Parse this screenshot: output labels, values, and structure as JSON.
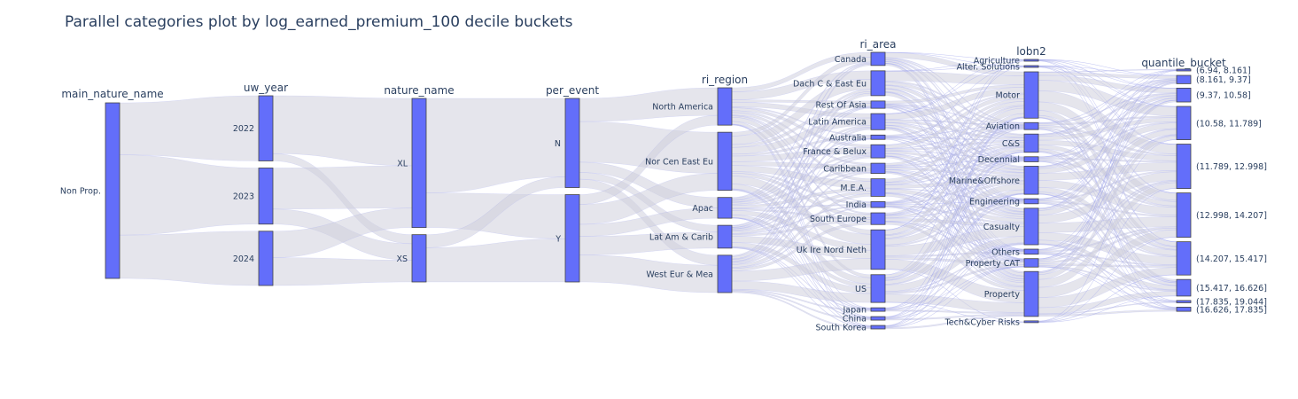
{
  "chart_data": {
    "type": "parallel_categories",
    "title": "Parallel categories plot by log_earned_premium_100 decile buckets",
    "colors": {
      "bar": "#636efa",
      "ribbon": "#d0d0dc",
      "ribbon_line": "#8f94f0",
      "text": "#2a3f5f"
    },
    "dimensions": [
      {
        "name": "main_nature_name",
        "label_side": "left",
        "categories": [
          {
            "label": "Non Prop.",
            "share": 1.0
          }
        ]
      },
      {
        "name": "uw_year",
        "label_side": "left",
        "categories": [
          {
            "label": "2022",
            "share": 0.36
          },
          {
            "label": "2023",
            "share": 0.31
          },
          {
            "label": "2024",
            "share": 0.3
          }
        ]
      },
      {
        "name": "nature_name",
        "label_side": "left",
        "categories": [
          {
            "label": "XL",
            "share": 0.71
          },
          {
            "label": "XS",
            "share": 0.26
          }
        ]
      },
      {
        "name": "per_event",
        "label_side": "left",
        "categories": [
          {
            "label": "N",
            "share": 0.49
          },
          {
            "label": "Y",
            "share": 0.48
          }
        ]
      },
      {
        "name": "ri_region",
        "label_side": "left",
        "categories": [
          {
            "label": "North America",
            "share": 0.18
          },
          {
            "label": "Nor Cen East Eu",
            "share": 0.28
          },
          {
            "label": "Apac",
            "share": 0.1
          },
          {
            "label": "Lat Am & Carib",
            "share": 0.11
          },
          {
            "label": "West Eur & Mea",
            "share": 0.18
          }
        ]
      },
      {
        "name": "ri_area",
        "label_side": "left",
        "categories": [
          {
            "label": "Canada",
            "share": 0.045
          },
          {
            "label": "Dach C & East Eu",
            "share": 0.085
          },
          {
            "label": "Rest Of Asia",
            "share": 0.025
          },
          {
            "label": "Latin America",
            "share": 0.055
          },
          {
            "label": "Australia",
            "share": 0.015
          },
          {
            "label": "France & Belux",
            "share": 0.045
          },
          {
            "label": "Caribbean",
            "share": 0.035
          },
          {
            "label": "M.E.A.",
            "share": 0.06
          },
          {
            "label": "India",
            "share": 0.02
          },
          {
            "label": "South Europe",
            "share": 0.04
          },
          {
            "label": "Uk Ire Nord Neth",
            "share": 0.135
          },
          {
            "label": "US",
            "share": 0.095
          },
          {
            "label": "Japan",
            "share": 0.012
          },
          {
            "label": "China",
            "share": 0.012
          },
          {
            "label": "South Korea",
            "share": 0.012
          }
        ]
      },
      {
        "name": "lobn2",
        "label_side": "left",
        "categories": [
          {
            "label": "Agriculture",
            "share": 0.004
          },
          {
            "label": "Alter. Solutions",
            "share": 0.004
          },
          {
            "label": "Motor",
            "share": 0.165
          },
          {
            "label": "Aviation",
            "share": 0.025
          },
          {
            "label": "C&S",
            "share": 0.065
          },
          {
            "label": "Decennial",
            "share": 0.018
          },
          {
            "label": "Marine&Offshore",
            "share": 0.1
          },
          {
            "label": "Engineering",
            "share": 0.018
          },
          {
            "label": "Casualty",
            "share": 0.13
          },
          {
            "label": "Others",
            "share": 0.018
          },
          {
            "label": "Property CAT",
            "share": 0.03
          },
          {
            "label": "Property",
            "share": 0.16
          },
          {
            "label": "Tech&Cyber Risks",
            "share": 0.005
          }
        ]
      },
      {
        "name": "quantile_bucket",
        "label_side": "right",
        "categories": [
          {
            "label": "(6.94, 8.161]",
            "share": 0.006
          },
          {
            "label": "(8.161, 9.37]",
            "share": 0.03
          },
          {
            "label": "(9.37, 10.58]",
            "share": 0.05
          },
          {
            "label": "(10.58, 11.789]",
            "share": 0.12
          },
          {
            "label": "(11.789, 12.998]",
            "share": 0.16
          },
          {
            "label": "(12.998, 14.207]",
            "share": 0.16
          },
          {
            "label": "(14.207, 15.417]",
            "share": 0.12
          },
          {
            "label": "(15.417, 16.626]",
            "share": 0.06
          },
          {
            "label": "(17.835, 19.044]",
            "share": 0.008
          },
          {
            "label": "(16.626, 17.835]",
            "share": 0.015
          }
        ]
      }
    ]
  }
}
